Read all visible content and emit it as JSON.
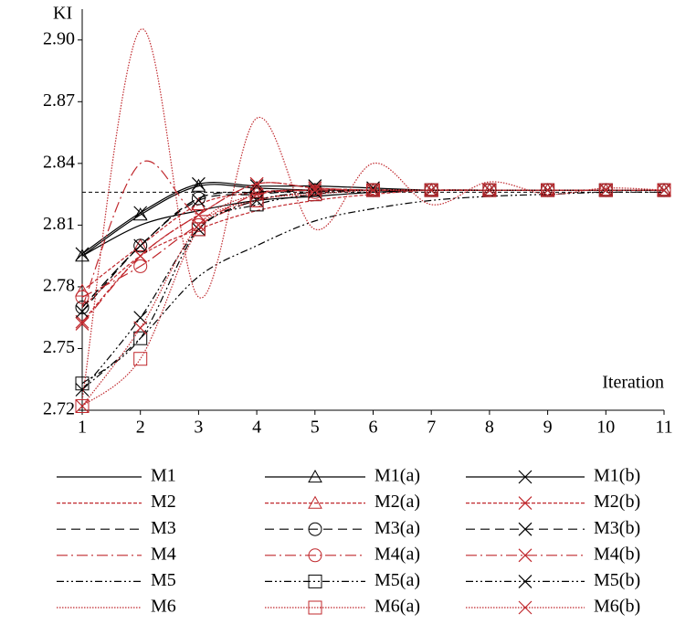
{
  "chart_data": {
    "type": "line",
    "y_label": "KI",
    "x_label": "Iteration",
    "x": [
      1,
      2,
      3,
      4,
      5,
      6,
      7,
      8,
      9,
      10,
      11
    ],
    "xlim": [
      1,
      11
    ],
    "xticks": [
      1,
      2,
      3,
      4,
      5,
      6,
      7,
      8,
      9,
      10,
      11
    ],
    "ylim": [
      2.72,
      2.915
    ],
    "yticks": [
      2.72,
      2.75,
      2.78,
      2.81,
      2.84,
      2.87,
      {
        "value": 2.9,
        "label": "2.90"
      }
    ],
    "reference_line": 2.826,
    "series": [
      {
        "name": "M1",
        "color": "#000000",
        "dash": "",
        "marker": "none",
        "values": [
          2.795,
          2.81,
          2.817,
          2.822,
          2.824,
          2.826,
          2.827,
          2.827,
          2.827,
          2.827,
          2.827
        ]
      },
      {
        "name": "M1(a)",
        "color": "#000000",
        "dash": "",
        "marker": "triangle",
        "values": [
          2.795,
          2.815,
          2.829,
          2.828,
          2.827,
          2.827,
          2.827,
          2.827,
          2.827,
          2.827,
          2.827
        ]
      },
      {
        "name": "M1(b)",
        "color": "#000000",
        "dash": "",
        "marker": "x",
        "values": [
          2.796,
          2.816,
          2.83,
          2.829,
          2.829,
          2.828,
          2.827,
          2.827,
          2.827,
          2.827,
          2.827
        ]
      },
      {
        "name": "M2",
        "color": "#c0282d",
        "dash": "4,2",
        "marker": "none",
        "values": [
          2.77,
          2.795,
          2.808,
          2.817,
          2.822,
          2.825,
          2.827,
          2.827,
          2.827,
          2.827,
          2.827
        ]
      },
      {
        "name": "M2(a)",
        "color": "#c0282d",
        "dash": "4,2",
        "marker": "triangle",
        "values": [
          2.778,
          2.8,
          2.82,
          2.826,
          2.827,
          2.827,
          2.827,
          2.827,
          2.827,
          2.827,
          2.827
        ]
      },
      {
        "name": "M2(b)",
        "color": "#c0282d",
        "dash": "4,2",
        "marker": "x",
        "values": [
          2.763,
          2.795,
          2.815,
          2.83,
          2.828,
          2.827,
          2.827,
          2.827,
          2.827,
          2.827,
          2.827
        ]
      },
      {
        "name": "M3",
        "color": "#000000",
        "dash": "10,6",
        "marker": "none",
        "values": [
          2.77,
          2.8,
          2.823,
          2.826,
          2.827,
          2.827,
          2.827,
          2.827,
          2.827,
          2.827,
          2.827
        ]
      },
      {
        "name": "M3(a)",
        "color": "#000000",
        "dash": "10,6",
        "marker": "circle",
        "values": [
          2.77,
          2.8,
          2.823,
          2.826,
          2.827,
          2.827,
          2.827,
          2.827,
          2.827,
          2.827,
          2.827
        ]
      },
      {
        "name": "M3(b)",
        "color": "#000000",
        "dash": "10,6",
        "marker": "x",
        "values": [
          2.768,
          2.8,
          2.822,
          2.825,
          2.827,
          2.827,
          2.827,
          2.827,
          2.827,
          2.827,
          2.827
        ]
      },
      {
        "name": "M4",
        "color": "#c0282d",
        "dash": "12,4,2,4",
        "marker": "none",
        "values": [
          2.77,
          2.84,
          2.815,
          2.825,
          2.827,
          2.827,
          2.827,
          2.827,
          2.827,
          2.827,
          2.827
        ]
      },
      {
        "name": "M4(a)",
        "color": "#c0282d",
        "dash": "12,4,2,4",
        "marker": "circle",
        "values": [
          2.775,
          2.79,
          2.81,
          2.822,
          2.826,
          2.827,
          2.827,
          2.827,
          2.827,
          2.827,
          2.827
        ]
      },
      {
        "name": "M4(b)",
        "color": "#c0282d",
        "dash": "12,4,2,4",
        "marker": "x",
        "values": [
          2.762,
          2.795,
          2.815,
          2.83,
          2.828,
          2.827,
          2.827,
          2.827,
          2.827,
          2.827,
          2.827
        ]
      },
      {
        "name": "M5",
        "color": "#000000",
        "dash": "8,3,2,3,2,3",
        "marker": "none",
        "values": [
          2.73,
          2.755,
          2.785,
          2.8,
          2.812,
          2.818,
          2.822,
          2.824,
          2.825,
          2.826,
          2.826
        ]
      },
      {
        "name": "M5(a)",
        "color": "#000000",
        "dash": "8,3,2,3,2,3",
        "marker": "square",
        "values": [
          2.733,
          2.755,
          2.808,
          2.82,
          2.825,
          2.827,
          2.827,
          2.827,
          2.827,
          2.827,
          2.827
        ]
      },
      {
        "name": "M5(b)",
        "color": "#000000",
        "dash": "8,3,2,3,2,3",
        "marker": "x",
        "values": [
          2.73,
          2.765,
          2.808,
          2.822,
          2.826,
          2.827,
          2.827,
          2.827,
          2.827,
          2.827,
          2.827
        ]
      },
      {
        "name": "M6",
        "color": "#c0282d",
        "dash": "1.5,1.5",
        "marker": "none",
        "values": [
          2.725,
          2.905,
          2.775,
          2.862,
          2.808,
          2.84,
          2.82,
          2.831,
          2.825,
          2.828,
          2.827
        ]
      },
      {
        "name": "M6(a)",
        "color": "#c0282d",
        "dash": "1.5,1.5",
        "marker": "square",
        "values": [
          2.722,
          2.745,
          2.808,
          2.822,
          2.825,
          2.827,
          2.827,
          2.827,
          2.827,
          2.827,
          2.827
        ]
      },
      {
        "name": "M6(b)",
        "color": "#c0282d",
        "dash": "1.5,1.5",
        "marker": "x",
        "values": [
          2.722,
          2.76,
          2.81,
          2.825,
          2.827,
          2.827,
          2.827,
          2.827,
          2.827,
          2.827,
          2.827
        ]
      }
    ]
  }
}
